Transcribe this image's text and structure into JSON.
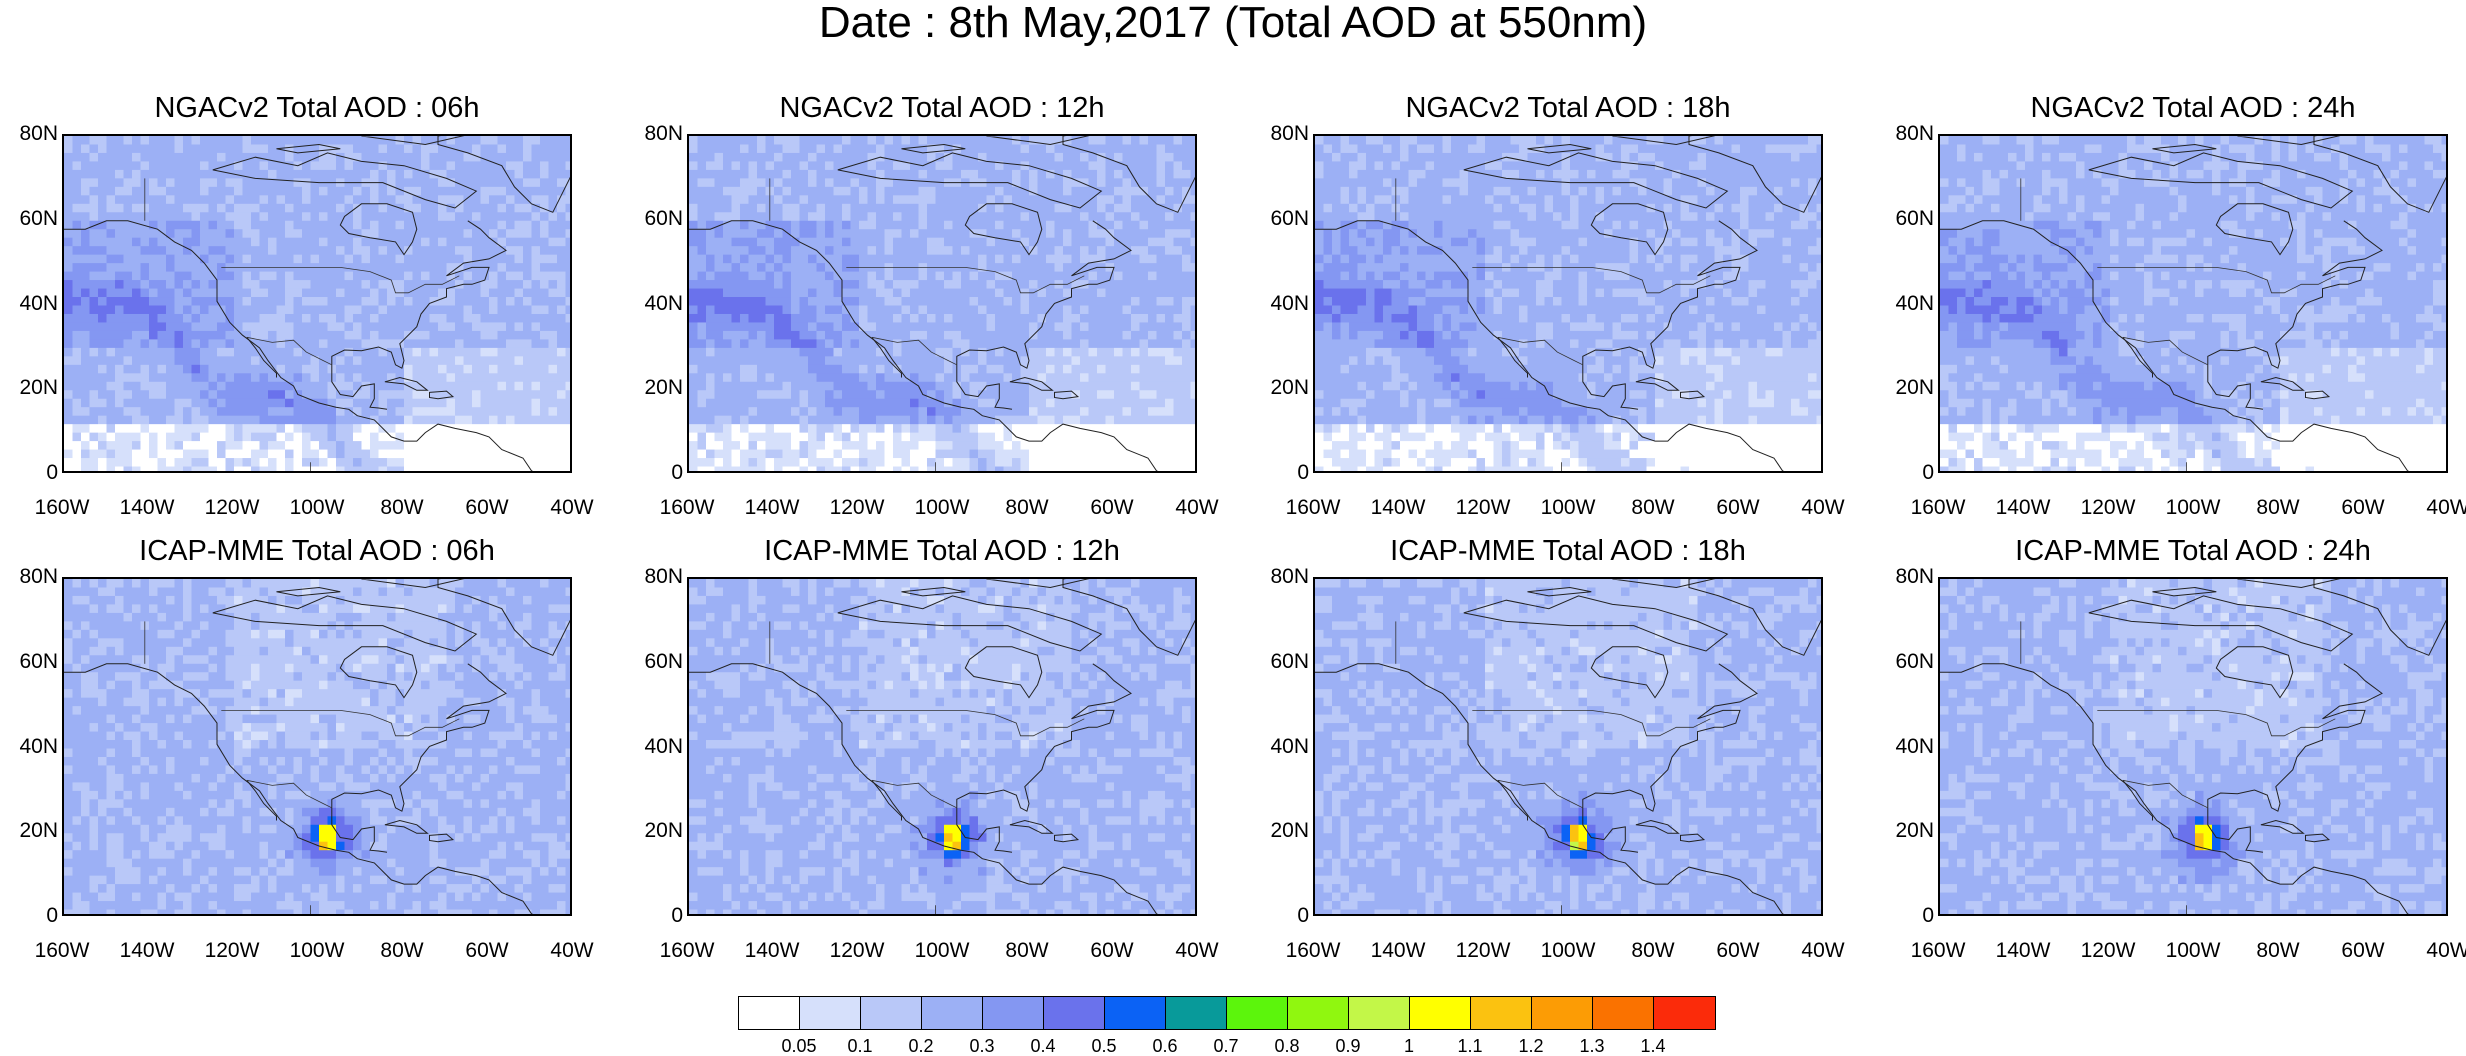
{
  "title": "Date : 8th May,2017 (Total AOD at 550nm)",
  "panels": [
    {
      "title": "NGACv2 Total AOD : 06h",
      "model": "ngac"
    },
    {
      "title": "NGACv2 Total AOD : 12h",
      "model": "ngac"
    },
    {
      "title": "NGACv2 Total AOD : 18h",
      "model": "ngac"
    },
    {
      "title": "NGACv2 Total AOD : 24h",
      "model": "ngac"
    },
    {
      "title": "ICAP-MME Total AOD : 06h",
      "model": "icap"
    },
    {
      "title": "ICAP-MME Total AOD : 12h",
      "model": "icap"
    },
    {
      "title": "ICAP-MME Total AOD : 18h",
      "model": "icap"
    },
    {
      "title": "ICAP-MME Total AOD : 24h",
      "model": "icap"
    }
  ],
  "lat_ticks": [
    "80N",
    "60N",
    "40N",
    "20N",
    "0"
  ],
  "lon_ticks": [
    "160W",
    "140W",
    "120W",
    "100W",
    "80W",
    "60W",
    "40W"
  ],
  "colorbar": {
    "colors": [
      "#ffffff",
      "#d6e0fb",
      "#b9c8f8",
      "#9cb0f5",
      "#8497f2",
      "#6a72ec",
      "#0b62f5",
      "#089a9a",
      "#5cf50c",
      "#90f70f",
      "#c3f748",
      "#ffff00",
      "#fbc210",
      "#fc9c05",
      "#fa7200",
      "#fb2b0a"
    ],
    "labels": [
      "0.05",
      "0.1",
      "0.2",
      "0.3",
      "0.4",
      "0.5",
      "0.6",
      "0.7",
      "0.8",
      "0.9",
      "1",
      "1.1",
      "1.2",
      "1.3",
      "1.4"
    ]
  },
  "map_extent": {
    "lon_min": -160,
    "lon_max": -40,
    "lat_min": 0,
    "lat_max": 80
  }
}
